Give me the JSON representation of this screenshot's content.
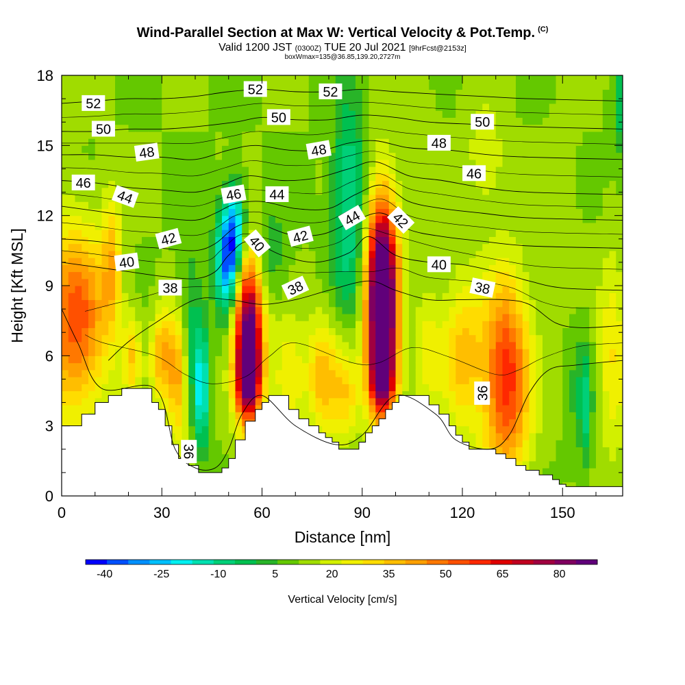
{
  "header": {
    "title": "Wind-Parallel Section at Max W: Vertical Velocity & Pot.Temp.",
    "copyright": "(C)",
    "valid_a": "Valid 1200 JST",
    "valid_utc": "(0300Z)",
    "valid_b": "TUE 20 Jul 2021",
    "forecast": "[9hrFcst@2153z]",
    "box_info": "boxWmax=135@36.85,139.20,2727m"
  },
  "chart_data": {
    "type": "heatmap",
    "xlabel": "Distance [nm]",
    "ylabel": "Height [Kft MSL]",
    "xlim": [
      0,
      168
    ],
    "ylim": [
      0,
      18
    ],
    "x_ticks": [
      0,
      30,
      60,
      90,
      120,
      150
    ],
    "y_ticks": [
      0,
      3,
      6,
      9,
      12,
      15,
      18
    ],
    "colorbar": {
      "label": "Vertical Velocity [cm/s]",
      "tick_labels": [
        "-40",
        "-25",
        "-10",
        "5",
        "20",
        "35",
        "50",
        "65",
        "80"
      ],
      "range": [
        -45,
        90
      ],
      "step": 5,
      "colors": [
        "#0000ff",
        "#0050ff",
        "#0090ff",
        "#00c0ff",
        "#00f0f0",
        "#00e0b0",
        "#00d078",
        "#00c050",
        "#28b428",
        "#64c800",
        "#a0dc00",
        "#d2f000",
        "#f0f000",
        "#ffdc00",
        "#ffbe00",
        "#ffa000",
        "#ff7800",
        "#ff5000",
        "#ff2800",
        "#e00000",
        "#c00020",
        "#a00040",
        "#800060",
        "#60007a"
      ]
    },
    "terrain_top_kft": [
      [
        0,
        3
      ],
      [
        4,
        3
      ],
      [
        6,
        3.5
      ],
      [
        8,
        3.5
      ],
      [
        10,
        4.0
      ],
      [
        12,
        4.0
      ],
      [
        14,
        4.3
      ],
      [
        16,
        4.3
      ],
      [
        18,
        4.6
      ],
      [
        24,
        4.6
      ],
      [
        27,
        4.0
      ],
      [
        29,
        3.7
      ],
      [
        31,
        3.0
      ],
      [
        33,
        2.2
      ],
      [
        35,
        1.6
      ],
      [
        38,
        1.3
      ],
      [
        41,
        1.0
      ],
      [
        45,
        1.0
      ],
      [
        48,
        1.2
      ],
      [
        50,
        1.6
      ],
      [
        52,
        2.4
      ],
      [
        55,
        3.2
      ],
      [
        58,
        3.7
      ],
      [
        60,
        4.0
      ],
      [
        62,
        4.3
      ],
      [
        65,
        4.3
      ],
      [
        68,
        3.7
      ],
      [
        71,
        3.3
      ],
      [
        74,
        3.0
      ],
      [
        77,
        2.7
      ],
      [
        79,
        2.5
      ],
      [
        81,
        2.3
      ],
      [
        83,
        2.0
      ],
      [
        86,
        2.0
      ],
      [
        89,
        2.3
      ],
      [
        91,
        2.7
      ],
      [
        93,
        3.0
      ],
      [
        95,
        3.3
      ],
      [
        97,
        3.7
      ],
      [
        99,
        4.0
      ],
      [
        101,
        4.3
      ],
      [
        106,
        4.3
      ],
      [
        110,
        3.9
      ],
      [
        113,
        3.5
      ],
      [
        116,
        3.0
      ],
      [
        118,
        2.6
      ],
      [
        120,
        2.3
      ],
      [
        122,
        2.0
      ],
      [
        128,
        2.0
      ],
      [
        130,
        1.8
      ],
      [
        133,
        1.6
      ],
      [
        136,
        1.3
      ],
      [
        139,
        1.1
      ],
      [
        143,
        0.9
      ],
      [
        147,
        0.7
      ],
      [
        149,
        0.5
      ],
      [
        151,
        0.4
      ],
      [
        164,
        0.4
      ],
      [
        168,
        0.6
      ]
    ],
    "theta_contours": [
      {
        "value": 36,
        "label": "36",
        "points": [
          [
            0,
            8
          ],
          [
            5,
            6.5
          ],
          [
            12,
            4.6
          ],
          [
            28,
            4.6
          ],
          [
            34,
            2.0
          ],
          [
            40,
            1.2
          ],
          [
            46,
            1.2
          ],
          [
            50,
            2.0
          ],
          [
            54,
            3.5
          ],
          [
            60,
            4.3
          ],
          [
            70,
            3.0
          ],
          [
            82,
            2.2
          ],
          [
            90,
            2.6
          ],
          [
            100,
            4.3
          ],
          [
            112,
            3.5
          ],
          [
            118,
            2.4
          ],
          [
            128,
            2.0
          ],
          [
            134,
            2.6
          ],
          [
            140,
            4.4
          ],
          [
            146,
            5.4
          ],
          [
            154,
            5.6
          ],
          [
            168,
            5.8
          ]
        ]
      },
      {
        "value": 38,
        "label": "38",
        "points": [
          [
            14,
            5.8
          ],
          [
            20,
            6.6
          ],
          [
            28,
            7.4
          ],
          [
            40,
            8.4
          ],
          [
            50,
            8.4
          ],
          [
            60,
            8.2
          ],
          [
            70,
            8.4
          ],
          [
            80,
            8.8
          ],
          [
            92,
            9.2
          ],
          [
            100,
            8.8
          ],
          [
            110,
            8.4
          ],
          [
            120,
            8.4
          ],
          [
            132,
            8.4
          ],
          [
            140,
            8.2
          ],
          [
            148,
            7.4
          ],
          [
            156,
            7.2
          ],
          [
            168,
            7.3
          ]
        ]
      },
      {
        "value": 40,
        "label": "40",
        "points": [
          [
            0,
            10.0
          ],
          [
            10,
            9.8
          ],
          [
            20,
            9.6
          ],
          [
            30,
            9.4
          ],
          [
            40,
            9.3
          ],
          [
            46,
            9.6
          ],
          [
            50,
            10.3
          ],
          [
            56,
            10.9
          ],
          [
            66,
            10.3
          ],
          [
            76,
            10.0
          ],
          [
            86,
            10.4
          ],
          [
            92,
            11.1
          ],
          [
            100,
            10.3
          ],
          [
            110,
            10.0
          ],
          [
            120,
            9.9
          ],
          [
            130,
            9.6
          ],
          [
            140,
            9.2
          ],
          [
            150,
            8.9
          ],
          [
            168,
            8.8
          ]
        ]
      },
      {
        "value": 42,
        "label": "42",
        "points": [
          [
            0,
            11.0
          ],
          [
            10,
            10.9
          ],
          [
            20,
            10.7
          ],
          [
            30,
            10.6
          ],
          [
            40,
            10.5
          ],
          [
            46,
            10.8
          ],
          [
            52,
            11.5
          ],
          [
            58,
            11.7
          ],
          [
            68,
            11.2
          ],
          [
            78,
            11.2
          ],
          [
            88,
            11.8
          ],
          [
            96,
            12.1
          ],
          [
            104,
            11.4
          ],
          [
            114,
            11.1
          ],
          [
            126,
            10.9
          ],
          [
            140,
            10.7
          ],
          [
            168,
            10.6
          ]
        ]
      },
      {
        "value": 44,
        "label": "44",
        "points": [
          [
            0,
            12.4
          ],
          [
            10,
            12.2
          ],
          [
            20,
            12.0
          ],
          [
            30,
            11.9
          ],
          [
            40,
            11.8
          ],
          [
            46,
            12.1
          ],
          [
            52,
            12.5
          ],
          [
            60,
            12.6
          ],
          [
            70,
            12.3
          ],
          [
            80,
            12.3
          ],
          [
            88,
            12.9
          ],
          [
            96,
            13.3
          ],
          [
            104,
            12.6
          ],
          [
            114,
            12.3
          ],
          [
            126,
            12.1
          ],
          [
            140,
            11.9
          ],
          [
            168,
            11.8
          ]
        ]
      },
      {
        "value": 46,
        "label": "46",
        "points": [
          [
            0,
            13.5
          ],
          [
            10,
            13.4
          ],
          [
            20,
            13.2
          ],
          [
            30,
            13.1
          ],
          [
            40,
            13.0
          ],
          [
            48,
            13.3
          ],
          [
            56,
            13.7
          ],
          [
            66,
            13.5
          ],
          [
            76,
            13.6
          ],
          [
            86,
            14.0
          ],
          [
            94,
            14.3
          ],
          [
            104,
            13.7
          ],
          [
            114,
            13.5
          ],
          [
            126,
            13.2
          ],
          [
            140,
            13.0
          ],
          [
            168,
            12.9
          ]
        ]
      },
      {
        "value": 48,
        "label": "48",
        "points": [
          [
            0,
            14.6
          ],
          [
            10,
            14.6
          ],
          [
            20,
            14.5
          ],
          [
            30,
            14.5
          ],
          [
            40,
            14.4
          ],
          [
            50,
            14.8
          ],
          [
            58,
            15.0
          ],
          [
            68,
            14.8
          ],
          [
            78,
            14.8
          ],
          [
            86,
            15.1
          ],
          [
            94,
            15.2
          ],
          [
            104,
            14.9
          ],
          [
            116,
            14.8
          ],
          [
            128,
            14.6
          ],
          [
            140,
            14.5
          ],
          [
            168,
            14.4
          ]
        ]
      },
      {
        "value": 50,
        "label": "50",
        "points": [
          [
            0,
            15.6
          ],
          [
            10,
            15.6
          ],
          [
            20,
            15.7
          ],
          [
            30,
            15.7
          ],
          [
            40,
            15.8
          ],
          [
            52,
            16.0
          ],
          [
            60,
            16.2
          ],
          [
            70,
            16.1
          ],
          [
            80,
            16.1
          ],
          [
            90,
            16.3
          ],
          [
            100,
            16.2
          ],
          [
            110,
            16.0
          ],
          [
            124,
            15.9
          ],
          [
            140,
            15.8
          ],
          [
            168,
            15.7
          ]
        ]
      },
      {
        "value": 52,
        "label": "52",
        "points": [
          [
            0,
            16.8
          ],
          [
            10,
            16.9
          ],
          [
            20,
            17.0
          ],
          [
            30,
            17.0
          ],
          [
            40,
            17.1
          ],
          [
            50,
            17.3
          ],
          [
            60,
            17.4
          ],
          [
            70,
            17.3
          ],
          [
            80,
            17.3
          ],
          [
            90,
            17.4
          ],
          [
            100,
            17.3
          ],
          [
            112,
            17.2
          ],
          [
            126,
            17.1
          ],
          [
            140,
            17.0
          ],
          [
            168,
            16.9
          ]
        ]
      }
    ],
    "contour_labels": [
      {
        "text": "52",
        "x": 9.5,
        "y": 16.8,
        "rot": 0
      },
      {
        "text": "52",
        "x": 58,
        "y": 17.4,
        "rot": 0
      },
      {
        "text": "52",
        "x": 80.5,
        "y": 17.3,
        "rot": 0
      },
      {
        "text": "50",
        "x": 12.5,
        "y": 15.7,
        "rot": 0
      },
      {
        "text": "50",
        "x": 65,
        "y": 16.2,
        "rot": 0
      },
      {
        "text": "50",
        "x": 126,
        "y": 16.0,
        "rot": 0
      },
      {
        "text": "48",
        "x": 25.5,
        "y": 14.7,
        "rot": -8
      },
      {
        "text": "48",
        "x": 77,
        "y": 14.8,
        "rot": -10
      },
      {
        "text": "48",
        "x": 113,
        "y": 15.1,
        "rot": 0
      },
      {
        "text": "46",
        "x": 6.5,
        "y": 13.4,
        "rot": 0
      },
      {
        "text": "46",
        "x": 51.5,
        "y": 12.9,
        "rot": -10
      },
      {
        "text": "46",
        "x": 123.5,
        "y": 13.8,
        "rot": 0
      },
      {
        "text": "44",
        "x": 19,
        "y": 12.8,
        "rot": 20
      },
      {
        "text": "44",
        "x": 64.5,
        "y": 12.9,
        "rot": 0
      },
      {
        "text": "44",
        "x": 87,
        "y": 11.9,
        "rot": -30
      },
      {
        "text": "42",
        "x": 32,
        "y": 11.0,
        "rot": -15
      },
      {
        "text": "42",
        "x": 71.5,
        "y": 11.1,
        "rot": -15
      },
      {
        "text": "42",
        "x": 101.5,
        "y": 11.8,
        "rot": 45
      },
      {
        "text": "40",
        "x": 19.5,
        "y": 10.0,
        "rot": -8
      },
      {
        "text": "40",
        "x": 58.5,
        "y": 10.8,
        "rot": 50
      },
      {
        "text": "40",
        "x": 113,
        "y": 9.9,
        "rot": 0
      },
      {
        "text": "38",
        "x": 32.5,
        "y": 8.9,
        "rot": 0
      },
      {
        "text": "38",
        "x": 70,
        "y": 8.9,
        "rot": -25
      },
      {
        "text": "38",
        "x": 126,
        "y": 8.9,
        "rot": 12
      },
      {
        "text": "36",
        "x": 38,
        "y": 1.9,
        "rot": 90
      },
      {
        "text": "36",
        "x": 126,
        "y": 4.4,
        "rot": -90
      }
    ],
    "velocity_features": [
      {
        "x": 4,
        "y": 7.5,
        "sx": 7,
        "sy": 2.8,
        "v": 38
      },
      {
        "x": 15,
        "y": 10.0,
        "sx": 2,
        "sy": 2.0,
        "v": 20
      },
      {
        "x": 21,
        "y": 6.0,
        "sx": 1.8,
        "sy": 1.2,
        "v": 18
      },
      {
        "x": 30,
        "y": 6.0,
        "sx": 2.3,
        "sy": 1.4,
        "v": 25
      },
      {
        "x": 35,
        "y": 5.2,
        "sx": 2.2,
        "sy": 2.0,
        "v": 32
      },
      {
        "x": 38,
        "y": 7.0,
        "sx": 3,
        "sy": 2.5,
        "v": -15
      },
      {
        "x": 42,
        "y": 4.5,
        "sx": 1.6,
        "sy": 1.8,
        "v": -25
      },
      {
        "x": 49.5,
        "y": 10.0,
        "sx": 2.4,
        "sy": 1.6,
        "v": -38
      },
      {
        "x": 52,
        "y": 11.5,
        "sx": 2.2,
        "sy": 1.4,
        "v": -28
      },
      {
        "x": 56,
        "y": 7.0,
        "sx": 3.0,
        "sy": 2.3,
        "v": 72
      },
      {
        "x": 56,
        "y": 4.8,
        "sx": 2.6,
        "sy": 1.2,
        "v": 35
      },
      {
        "x": 62,
        "y": 10.2,
        "sx": 4,
        "sy": 1.5,
        "v": -10
      },
      {
        "x": 68,
        "y": 5.0,
        "sx": 3.5,
        "sy": 1.8,
        "v": 16
      },
      {
        "x": 78,
        "y": 5.2,
        "sx": 3,
        "sy": 1.8,
        "v": 22
      },
      {
        "x": 85,
        "y": 4.5,
        "sx": 3,
        "sy": 1.5,
        "v": 18
      },
      {
        "x": 86,
        "y": 12.5,
        "sx": 3.5,
        "sy": 3.2,
        "v": -22
      },
      {
        "x": 96,
        "y": 8.5,
        "sx": 3.2,
        "sy": 2.9,
        "v": 95
      },
      {
        "x": 96,
        "y": 5.0,
        "sx": 2.8,
        "sy": 1.2,
        "v": 40
      },
      {
        "x": 110,
        "y": 6.5,
        "sx": 3,
        "sy": 2.0,
        "v": 12
      },
      {
        "x": 120,
        "y": 6.0,
        "sx": 4,
        "sy": 2.2,
        "v": 22
      },
      {
        "x": 133,
        "y": 5.0,
        "sx": 5,
        "sy": 3.0,
        "v": 44
      },
      {
        "x": 127,
        "y": 14.5,
        "sx": 4,
        "sy": 1.6,
        "v": 10
      },
      {
        "x": 155,
        "y": 4.5,
        "sx": 2.5,
        "sy": 2.5,
        "v": -6
      },
      {
        "x": 157,
        "y": 3.8,
        "sx": 1.2,
        "sy": 1.6,
        "v": -14
      },
      {
        "x": 165,
        "y": 6.0,
        "sx": 3,
        "sy": 3,
        "v": 15
      },
      {
        "x": 168,
        "y": 17,
        "sx": 2,
        "sy": 2,
        "v": -14
      },
      {
        "x": 150,
        "y": 12,
        "sx": 4,
        "sy": 3,
        "v": 3
      },
      {
        "x": 110,
        "y": 17.2,
        "sx": 3,
        "sy": 1.5,
        "v": 2
      }
    ]
  }
}
